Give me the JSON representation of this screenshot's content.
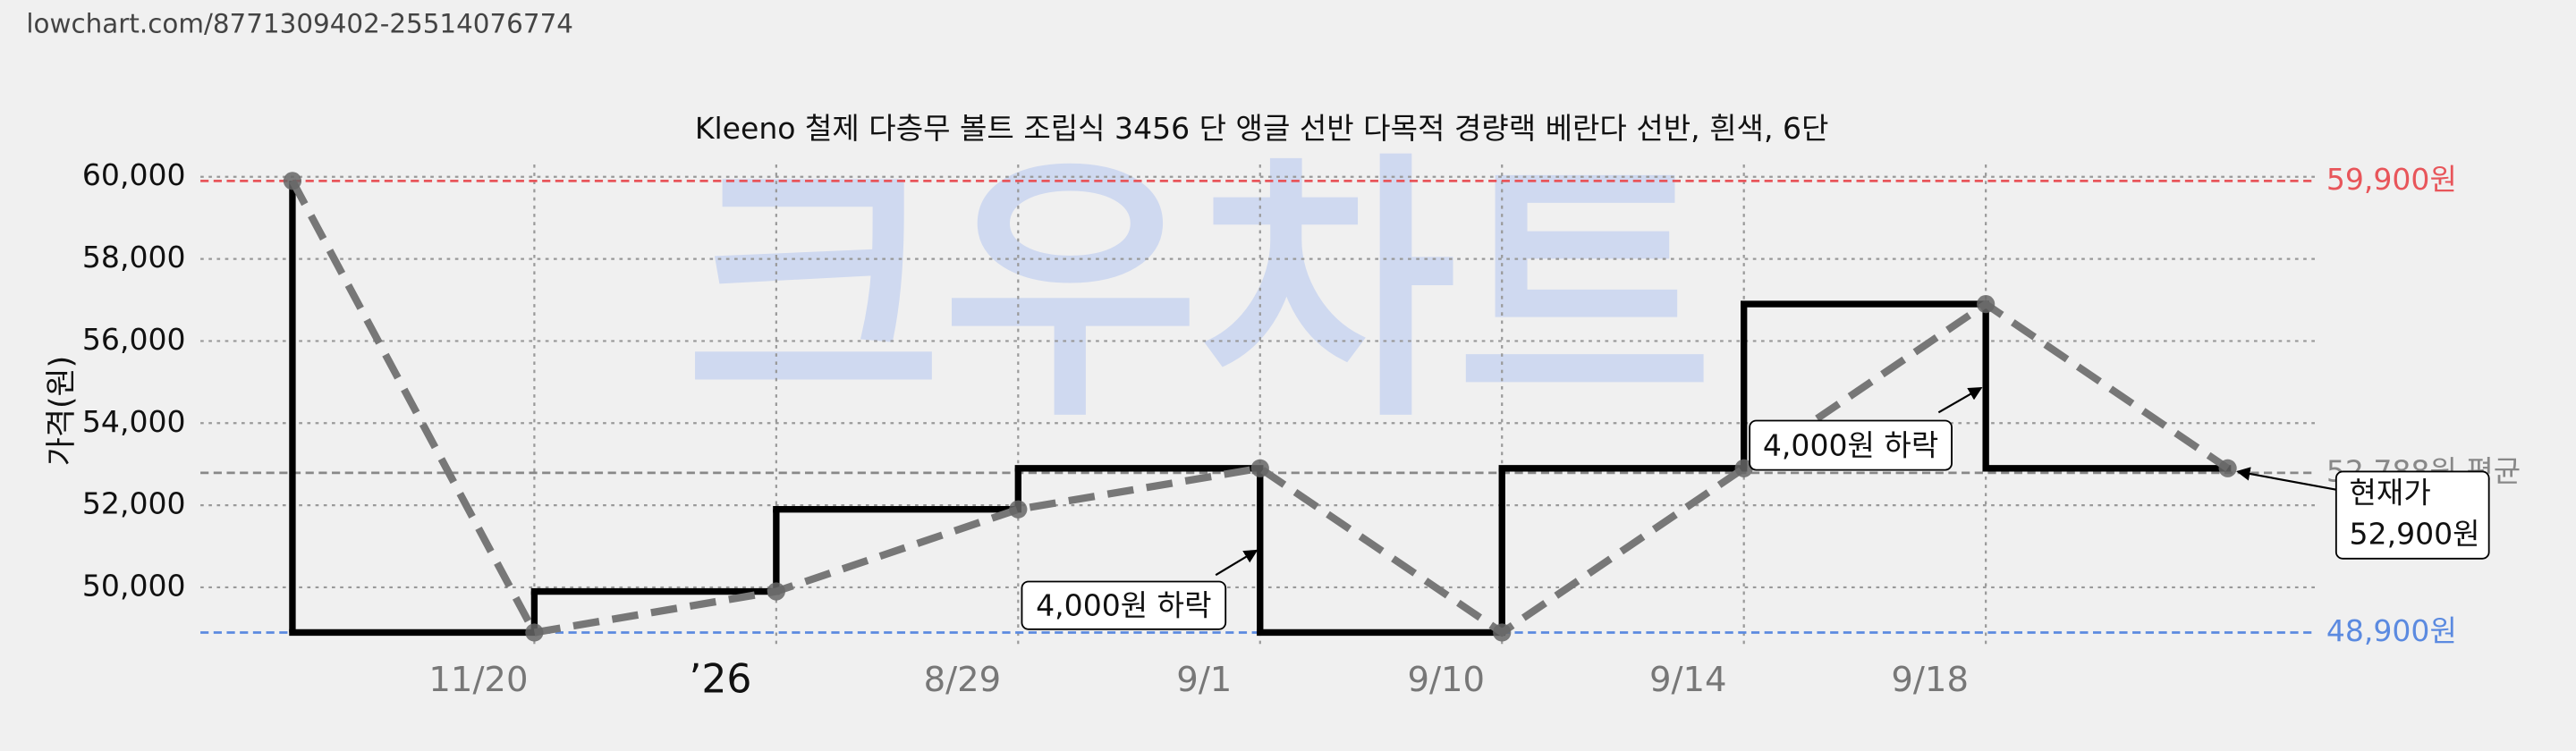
{
  "url": "lowchart.com/8771309402-25514076774",
  "chart_data": {
    "type": "line",
    "title": "Kleeno 철제 다층무 볼트 조립식 3456 단 앵글 선반 다목적 경량랙 베란다 선반, 흰색, 6단",
    "watermark": "크우차트",
    "y_label": "가격(원)",
    "categories": [
      null,
      "11/20",
      "’26",
      "8/29",
      "9/1",
      "9/10",
      "9/14",
      "9/18",
      null
    ],
    "series": [
      {
        "name": "가격",
        "color": "#000000",
        "values": [
          59900,
          48900,
          49900,
          51900,
          52900,
          48900,
          52900,
          56900,
          52900
        ]
      }
    ],
    "ylim": [
      48500,
      60300
    ],
    "yticks": [
      {
        "value": 50000,
        "label": "50,000"
      },
      {
        "value": 52000,
        "label": "52,000"
      },
      {
        "value": 54000,
        "label": "54,000"
      },
      {
        "value": 56000,
        "label": "56,000"
      },
      {
        "value": 58000,
        "label": "58,000"
      },
      {
        "value": 60000,
        "label": "60,000"
      }
    ],
    "grid": true,
    "reference_lines": [
      {
        "value": 59900,
        "label": "59,900원",
        "color": "#e8555a"
      },
      {
        "value": 48900,
        "label": "48,900원",
        "color": "#5b8ae0"
      },
      {
        "value": 52788,
        "label": "52,788원 평균",
        "color": "#888888"
      }
    ],
    "annotations": [
      {
        "text": "4,000원 하락"
      },
      {
        "text": "4,000원 하락"
      }
    ],
    "current_price": {
      "lines": [
        "현재가",
        "52,900원"
      ]
    }
  }
}
